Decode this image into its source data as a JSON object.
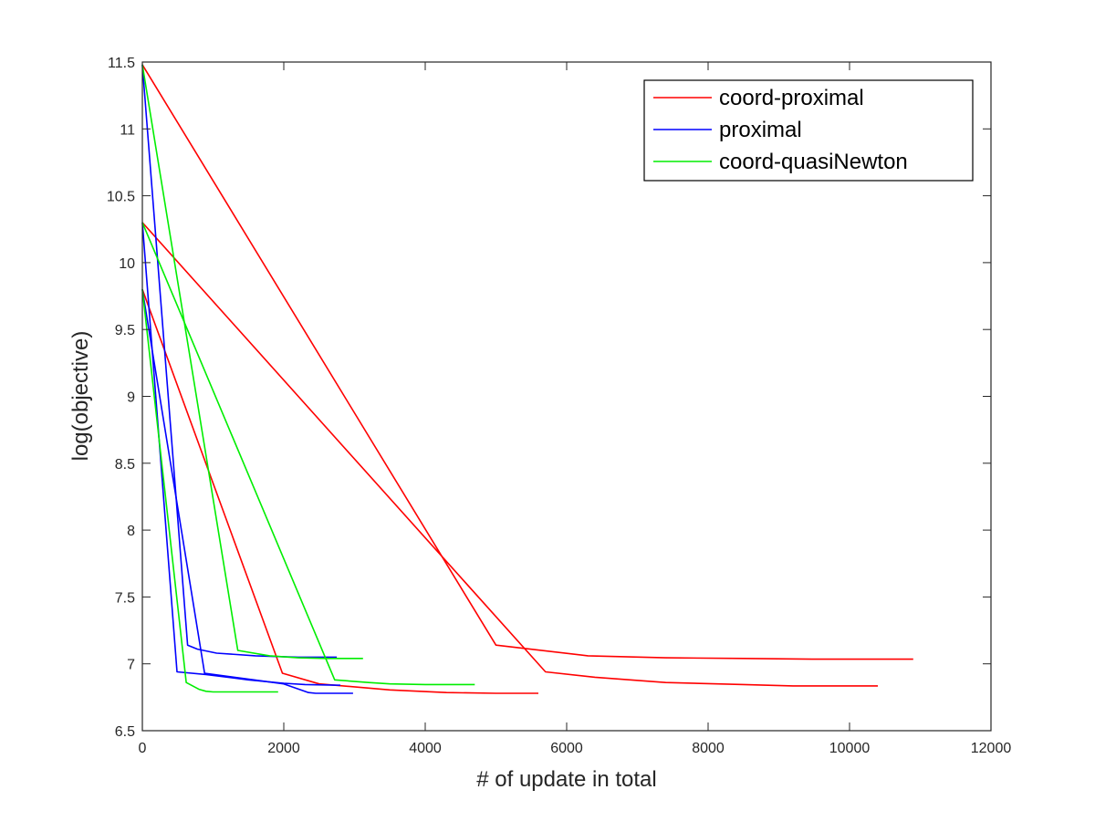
{
  "chart_data": {
    "type": "line",
    "title": "",
    "xlabel": "# of update in total",
    "ylabel": "log(objective)",
    "xlim": [
      0,
      12000
    ],
    "ylim": [
      6.5,
      11.5
    ],
    "xticks": [
      0,
      2000,
      4000,
      6000,
      8000,
      10000,
      12000
    ],
    "xtick_labels": [
      "0",
      "2000",
      "4000",
      "6000",
      "8000",
      "10000",
      "12000"
    ],
    "yticks": [
      6.5,
      7,
      7.5,
      8,
      8.5,
      9,
      9.5,
      10,
      10.5,
      11,
      11.5
    ],
    "ytick_labels": [
      "6.5",
      "7",
      "7.5",
      "8",
      "8.5",
      "9",
      "9.5",
      "10",
      "10.5",
      "11",
      "11.5"
    ],
    "grid": false,
    "legend_position": "top-right",
    "legend": [
      {
        "label": "coord-proximal",
        "color": "#ff0000"
      },
      {
        "label": "proximal",
        "color": "#0000ff"
      },
      {
        "label": "coord-quasiNewton",
        "color": "#00ee00"
      }
    ],
    "series": [
      {
        "group": 0,
        "color": "#ff0000",
        "x": [
          0,
          5000,
          6300,
          7400,
          8500,
          9500,
          10900
        ],
        "y": [
          11.48,
          7.14,
          7.06,
          7.045,
          7.04,
          7.035,
          7.035
        ]
      },
      {
        "group": 0,
        "color": "#ff0000",
        "x": [
          0,
          5700,
          6400,
          7400,
          8500,
          9200,
          10400
        ],
        "y": [
          10.3,
          6.94,
          6.9,
          6.86,
          6.845,
          6.835,
          6.835
        ]
      },
      {
        "group": 0,
        "color": "#ff0000",
        "x": [
          0,
          1980,
          2500,
          3500,
          4300,
          5000,
          5600
        ],
        "y": [
          9.8,
          6.93,
          6.85,
          6.805,
          6.785,
          6.78,
          6.78
        ]
      },
      {
        "group": 1,
        "color": "#0000ff",
        "x": [
          0,
          640,
          780,
          1050,
          1600,
          2200,
          2750
        ],
        "y": [
          11.48,
          7.14,
          7.11,
          7.08,
          7.06,
          7.05,
          7.05
        ]
      },
      {
        "group": 1,
        "color": "#0000ff",
        "x": [
          0,
          490,
          900,
          1500,
          2000,
          2300,
          2800
        ],
        "y": [
          10.3,
          6.94,
          6.92,
          6.88,
          6.855,
          6.845,
          6.84
        ]
      },
      {
        "group": 1,
        "color": "#0000ff",
        "x": [
          0,
          880,
          1300,
          2000,
          2350,
          2450,
          2980
        ],
        "y": [
          9.8,
          6.93,
          6.9,
          6.85,
          6.785,
          6.78,
          6.78
        ]
      },
      {
        "group": 2,
        "color": "#00ee00",
        "x": [
          0,
          1350,
          1800,
          2200,
          2600,
          3120
        ],
        "y": [
          11.48,
          7.1,
          7.06,
          7.045,
          7.04,
          7.04
        ]
      },
      {
        "group": 2,
        "color": "#00ee00",
        "x": [
          0,
          2720,
          3200,
          3500,
          4000,
          4700
        ],
        "y": [
          10.3,
          6.88,
          6.86,
          6.85,
          6.845,
          6.845
        ]
      },
      {
        "group": 2,
        "color": "#00ee00",
        "x": [
          0,
          620,
          800,
          900,
          1000,
          1300,
          1920
        ],
        "y": [
          9.8,
          6.86,
          6.81,
          6.795,
          6.79,
          6.79,
          6.79
        ]
      }
    ]
  }
}
